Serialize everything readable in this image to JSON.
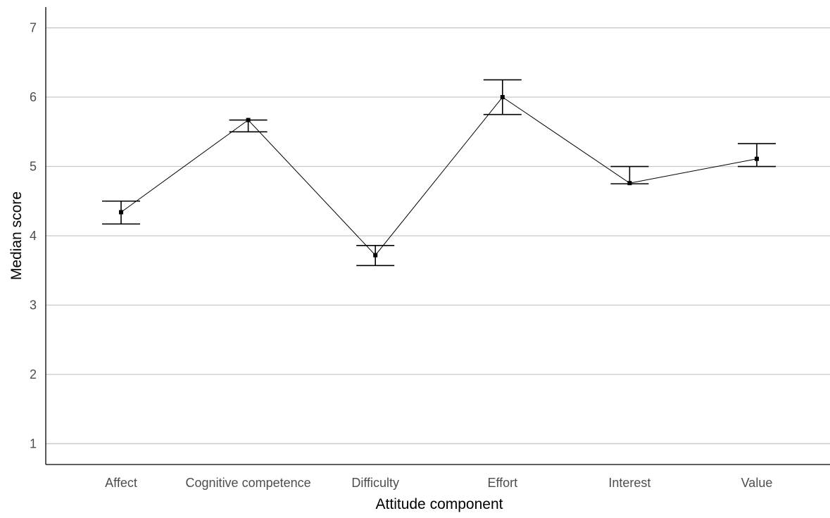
{
  "chart_data": {
    "type": "line",
    "title": "",
    "xlabel": "Attitude component",
    "ylabel": "Median score",
    "categories": [
      "Affect",
      "Cognitive competence",
      "Difficulty",
      "Effort",
      "Interest",
      "Value"
    ],
    "series": [
      {
        "values": [
          4.34,
          5.67,
          3.72,
          6.0,
          4.76,
          5.11
        ],
        "error_low": [
          4.17,
          5.5,
          3.57,
          5.75,
          4.75,
          5.0
        ],
        "error_high": [
          4.5,
          5.67,
          3.86,
          6.25,
          5.0,
          5.33
        ]
      }
    ],
    "yticks": [
      1,
      2,
      3,
      4,
      5,
      6,
      7
    ],
    "ylim": [
      0.7,
      7.3
    ],
    "grid": true,
    "colors": {
      "line": "#000000",
      "grid": "#c8c8c8",
      "tick_text": "#4d4d4d"
    }
  }
}
